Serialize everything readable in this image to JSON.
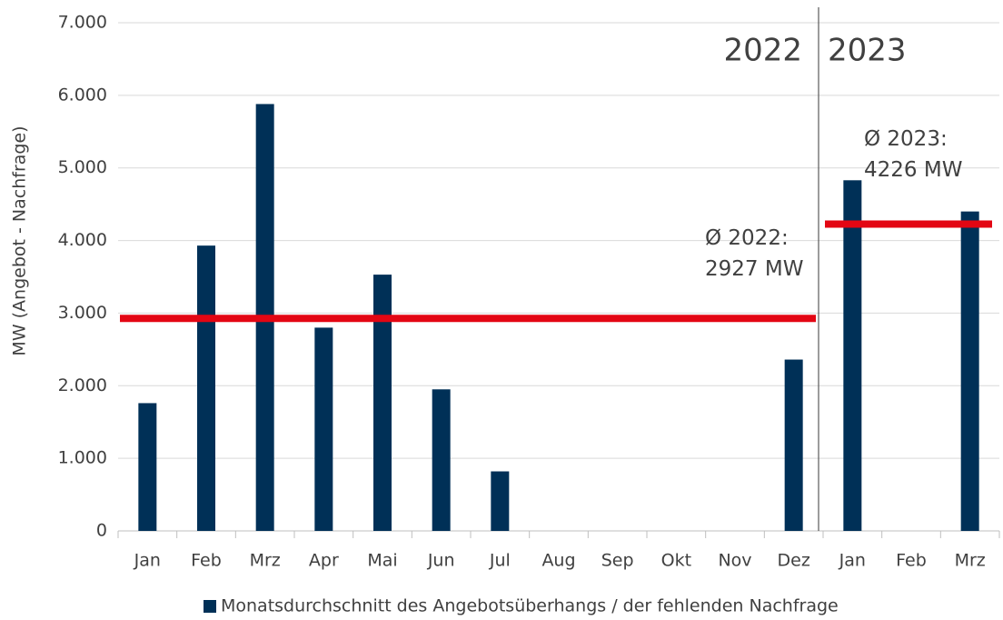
{
  "chart_data": {
    "type": "bar",
    "y_label": "MW (Angebot - Nachfrage)",
    "categories": [
      "Jan",
      "Feb",
      "Mrz",
      "Apr",
      "Mai",
      "Jun",
      "Jul",
      "Aug",
      "Sep",
      "Okt",
      "Nov",
      "Dez",
      "Jan",
      "Feb",
      "Mrz"
    ],
    "series": [
      {
        "name": "Monatsdurchschnitt des Angebotsüberhangs / der fehlenden Nachfrage",
        "color": "#003057",
        "values": [
          1760,
          3930,
          5880,
          2800,
          3530,
          1950,
          820,
          null,
          null,
          null,
          null,
          2360,
          4830,
          null,
          4400
        ]
      }
    ],
    "ylim": [
      0,
      7000
    ],
    "yticks": [
      0,
      {
        "value": 1000,
        "label": "1.000"
      },
      {
        "value": 2000,
        "label": "2.000"
      },
      {
        "value": 3000,
        "label": "3.000"
      },
      {
        "value": 4000,
        "label": "4.000"
      },
      {
        "value": 5000,
        "label": "5.000"
      },
      {
        "value": 6000,
        "label": "6.000"
      },
      {
        "value": 7000,
        "label": "7.000"
      }
    ],
    "grid": true,
    "periods": [
      {
        "label": "2022",
        "start": 0,
        "end": 11,
        "average": 2927,
        "average_label": [
          "Ø 2022:",
          "2927 MW"
        ]
      },
      {
        "label": "2023",
        "start": 12,
        "end": 14,
        "average": 4226,
        "average_label": [
          "Ø 2023:",
          "4226 MW"
        ]
      }
    ],
    "average_color": "#e30613",
    "legend": "bottom"
  }
}
